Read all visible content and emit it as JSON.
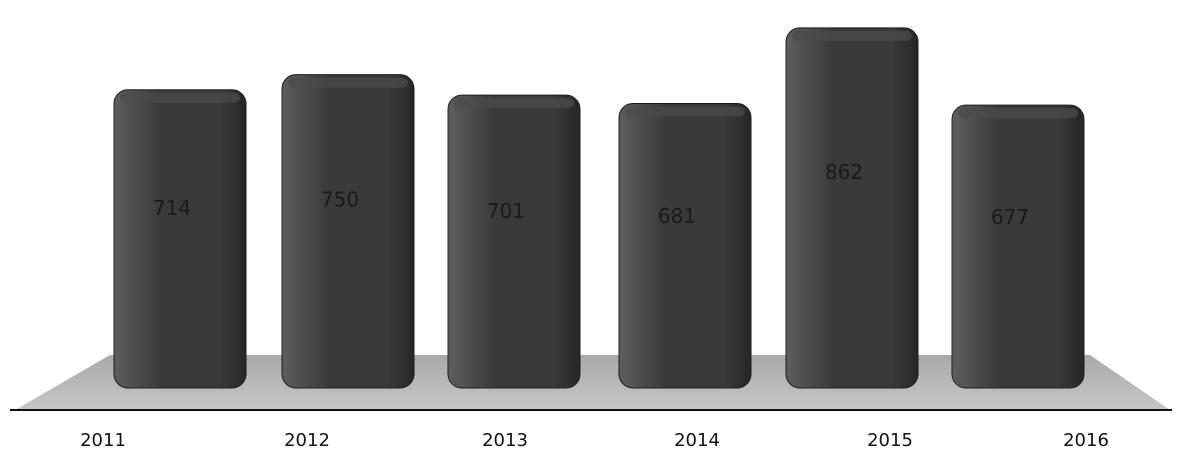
{
  "chart_data": {
    "type": "bar",
    "categories": [
      "2011",
      "2012",
      "2013",
      "2014",
      "2015",
      "2016"
    ],
    "values": [
      714,
      750,
      701,
      681,
      862,
      677
    ],
    "data_labels": [
      "714",
      "750",
      "701",
      "681",
      "862",
      "677"
    ],
    "title": "",
    "xlabel": "",
    "ylabel": "",
    "ylim": [
      0,
      900
    ],
    "grid": false,
    "legend": "none",
    "style": "3d-rounded-columns",
    "colors": {
      "bar": "#3a3a3a",
      "bar_highlight": "#5e5e5e",
      "floor": "#b8b8b8",
      "label_text": "#1a1a1a",
      "axis_line": "#111111"
    }
  }
}
